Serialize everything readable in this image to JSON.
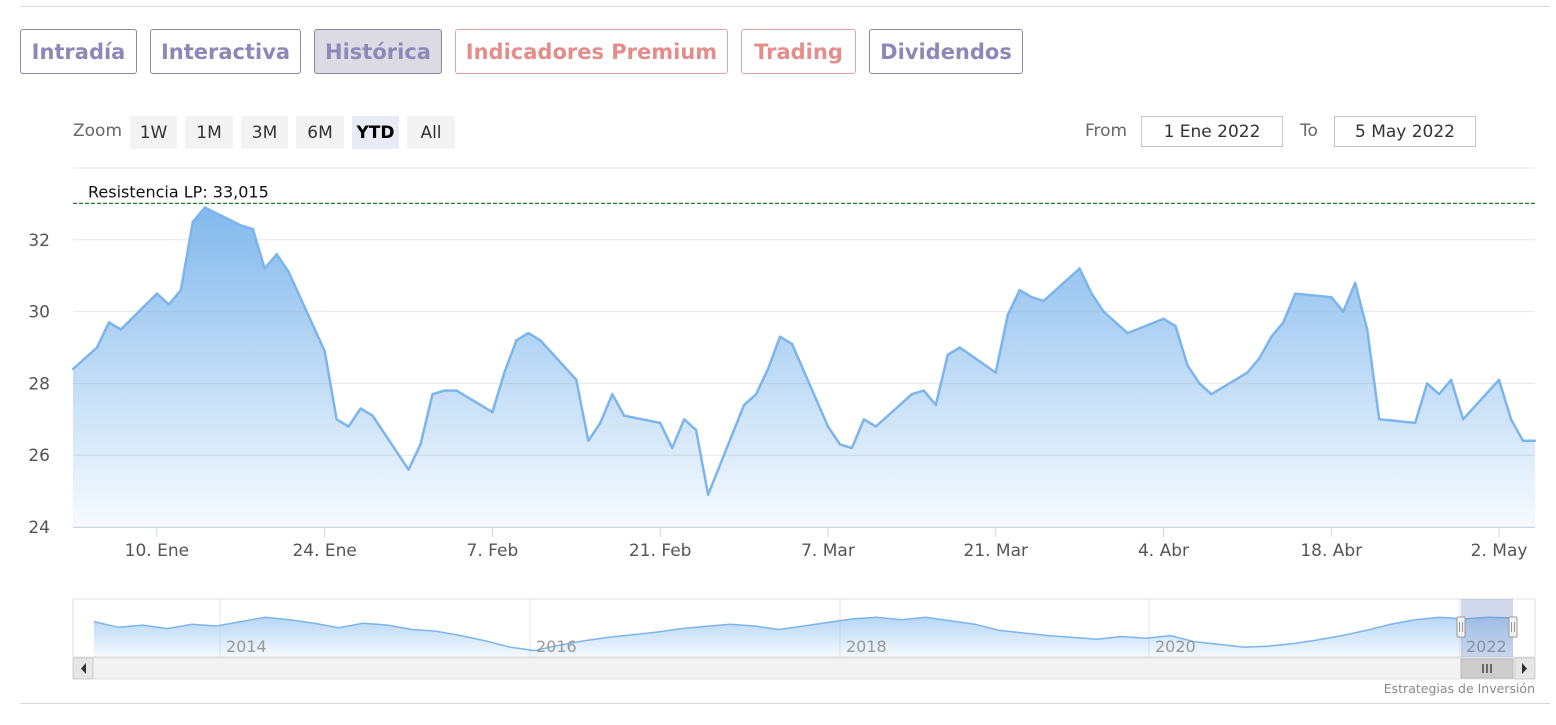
{
  "tabs": [
    {
      "label": "Intradía",
      "style": "normal"
    },
    {
      "label": "Interactiva",
      "style": "normal"
    },
    {
      "label": "Histórica",
      "style": "active"
    },
    {
      "label": "Indicadores Premium",
      "style": "red"
    },
    {
      "label": "Trading",
      "style": "red"
    },
    {
      "label": "Dividendos",
      "style": "normal"
    }
  ],
  "range_selector": {
    "zoom_label": "Zoom",
    "buttons": [
      "1W",
      "1M",
      "3M",
      "6M",
      "YTD",
      "All"
    ],
    "selected": "YTD",
    "from_label": "From",
    "from_value": "1 Ene 2022",
    "to_label": "To",
    "to_value": "5 May 2022"
  },
  "colors": {
    "line": "#7cb5ec",
    "area_top": "#7cb5ec",
    "resistance": "#2e7d32",
    "tab_text": "#8d88b8",
    "tab_red_text": "#e48d8a"
  },
  "chart_data": {
    "type": "area",
    "x_unit": "trading days, 3 Ene 2022 – 5 May 2022",
    "x": [
      "2022-01-03",
      "2022-01-04",
      "2022-01-05",
      "2022-01-06",
      "2022-01-07",
      "2022-01-10",
      "2022-01-11",
      "2022-01-12",
      "2022-01-13",
      "2022-01-14",
      "2022-01-17",
      "2022-01-18",
      "2022-01-19",
      "2022-01-20",
      "2022-01-21",
      "2022-01-24",
      "2022-01-25",
      "2022-01-26",
      "2022-01-27",
      "2022-01-28",
      "2022-01-31",
      "2022-02-01",
      "2022-02-02",
      "2022-02-03",
      "2022-02-04",
      "2022-02-07",
      "2022-02-08",
      "2022-02-09",
      "2022-02-10",
      "2022-02-11",
      "2022-02-14",
      "2022-02-15",
      "2022-02-16",
      "2022-02-17",
      "2022-02-18",
      "2022-02-21",
      "2022-02-22",
      "2022-02-23",
      "2022-02-24",
      "2022-02-25",
      "2022-02-28",
      "2022-03-01",
      "2022-03-02",
      "2022-03-03",
      "2022-03-04",
      "2022-03-07",
      "2022-03-08",
      "2022-03-09",
      "2022-03-10",
      "2022-03-11",
      "2022-03-14",
      "2022-03-15",
      "2022-03-16",
      "2022-03-17",
      "2022-03-18",
      "2022-03-21",
      "2022-03-22",
      "2022-03-23",
      "2022-03-24",
      "2022-03-25",
      "2022-03-28",
      "2022-03-29",
      "2022-03-30",
      "2022-03-31",
      "2022-04-01",
      "2022-04-04",
      "2022-04-05",
      "2022-04-06",
      "2022-04-07",
      "2022-04-08",
      "2022-04-11",
      "2022-04-12",
      "2022-04-13",
      "2022-04-14",
      "2022-04-15",
      "2022-04-18",
      "2022-04-19",
      "2022-04-20",
      "2022-04-21",
      "2022-04-22",
      "2022-04-25",
      "2022-04-26",
      "2022-04-27",
      "2022-04-28",
      "2022-04-29",
      "2022-05-02",
      "2022-05-03",
      "2022-05-04",
      "2022-05-05"
    ],
    "series": [
      {
        "values": [
          28.4,
          28.7,
          29.0,
          29.7,
          29.5,
          30.5,
          30.2,
          30.6,
          32.5,
          32.9,
          32.4,
          32.3,
          31.2,
          31.6,
          31.1,
          28.9,
          27.0,
          26.8,
          27.3,
          27.1,
          25.6,
          26.3,
          27.7,
          27.8,
          27.8,
          27.2,
          28.3,
          29.2,
          29.4,
          29.2,
          28.1,
          26.4,
          26.9,
          27.7,
          27.1,
          26.9,
          26.2,
          27.0,
          26.7,
          24.9,
          27.4,
          27.7,
          28.4,
          29.3,
          29.1,
          26.8,
          26.3,
          26.2,
          27.0,
          26.8,
          27.7,
          27.8,
          27.4,
          28.8,
          29.0,
          28.3,
          29.9,
          30.6,
          30.4,
          30.3,
          31.2,
          30.5,
          30.0,
          29.7,
          29.4,
          29.8,
          29.6,
          28.5,
          28.0,
          27.7,
          28.3,
          28.7,
          29.3,
          29.7,
          30.5,
          30.4,
          30.0,
          30.8,
          29.5,
          27.0,
          26.9,
          28.0,
          27.7,
          28.1,
          27.0,
          28.1,
          27.0,
          26.4,
          26.4
        ]
      }
    ],
    "ylim": [
      24,
      34
    ],
    "y_ticks": [
      "24",
      "26",
      "28",
      "30",
      "32"
    ],
    "x_tick_labels": [
      {
        "date": "2022-01-10",
        "label": "10. Ene"
      },
      {
        "date": "2022-01-24",
        "label": "24. Ene"
      },
      {
        "date": "2022-02-07",
        "label": "7. Feb"
      },
      {
        "date": "2022-02-21",
        "label": "21. Feb"
      },
      {
        "date": "2022-03-07",
        "label": "7. Mar"
      },
      {
        "date": "2022-03-21",
        "label": "21. Mar"
      },
      {
        "date": "2022-04-04",
        "label": "4. Abr"
      },
      {
        "date": "2022-04-18",
        "label": "18. Abr"
      },
      {
        "date": "2022-05-02",
        "label": "2. May"
      }
    ],
    "annotations": [
      {
        "type": "horizontal-line",
        "value": 33.015,
        "label": "Resistencia LP: 33,015",
        "style": "dashed"
      }
    ],
    "navigator": {
      "year_labels": [
        "2014",
        "2016",
        "2018",
        "2020",
        "2022"
      ],
      "profile": [
        0.76,
        0.63,
        0.68,
        0.6,
        0.7,
        0.66,
        0.76,
        0.86,
        0.8,
        0.72,
        0.62,
        0.72,
        0.68,
        0.58,
        0.54,
        0.44,
        0.32,
        0.18,
        0.1,
        0.22,
        0.32,
        0.4,
        0.46,
        0.52,
        0.6,
        0.65,
        0.7,
        0.66,
        0.58,
        0.66,
        0.74,
        0.82,
        0.86,
        0.8,
        0.86,
        0.78,
        0.7,
        0.56,
        0.5,
        0.44,
        0.4,
        0.36,
        0.42,
        0.38,
        0.44,
        0.3,
        0.24,
        0.18,
        0.2,
        0.26,
        0.34,
        0.44,
        0.56,
        0.7,
        0.8,
        0.86,
        0.82,
        0.86,
        0.84
      ]
    },
    "legend": "none",
    "grid": "horizontal",
    "credit": "Estrategias de Inversión"
  }
}
